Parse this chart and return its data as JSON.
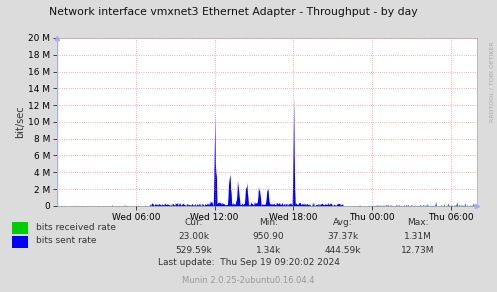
{
  "title": "Network interface vmxnet3 Ethernet Adapter - Throughput - by day",
  "ylabel": "bit/sec",
  "right_label": "RRDTOOL / TOBI OETIKER",
  "bg_color": "#DCDCDC",
  "plot_bg_color": "#FFFFFF",
  "grid_color": "#FF6666",
  "ytick_labels": [
    "0",
    "2 M",
    "4 M",
    "6 M",
    "8 M",
    "10 M",
    "12 M",
    "14 M",
    "16 M",
    "18 M",
    "20 M"
  ],
  "ytick_vals": [
    0,
    2000000,
    4000000,
    6000000,
    8000000,
    10000000,
    12000000,
    14000000,
    16000000,
    18000000,
    20000000
  ],
  "xtick_labels": [
    "Wed 06:00",
    "Wed 12:00",
    "Wed 18:00",
    "Thu 00:00",
    "Thu 06:00"
  ],
  "recv_color": "#00CC00",
  "sent_color": "#0000FF",
  "legend_labels": [
    "bits received rate",
    "bits sent rate"
  ],
  "cur_recv": "23.00k",
  "cur_sent": "529.59k",
  "min_recv": "950.90",
  "min_sent": "1.34k",
  "avg_recv": "37.37k",
  "avg_sent": "444.59k",
  "max_recv": "1.31M",
  "max_sent": "12.73M",
  "last_update": "Last update:  Thu Sep 19 09:20:02 2024",
  "munin_ver": "Munin 2.0.25-2ubuntu0.16.04.4",
  "ylim": [
    0,
    20000000
  ],
  "num_points": 800
}
